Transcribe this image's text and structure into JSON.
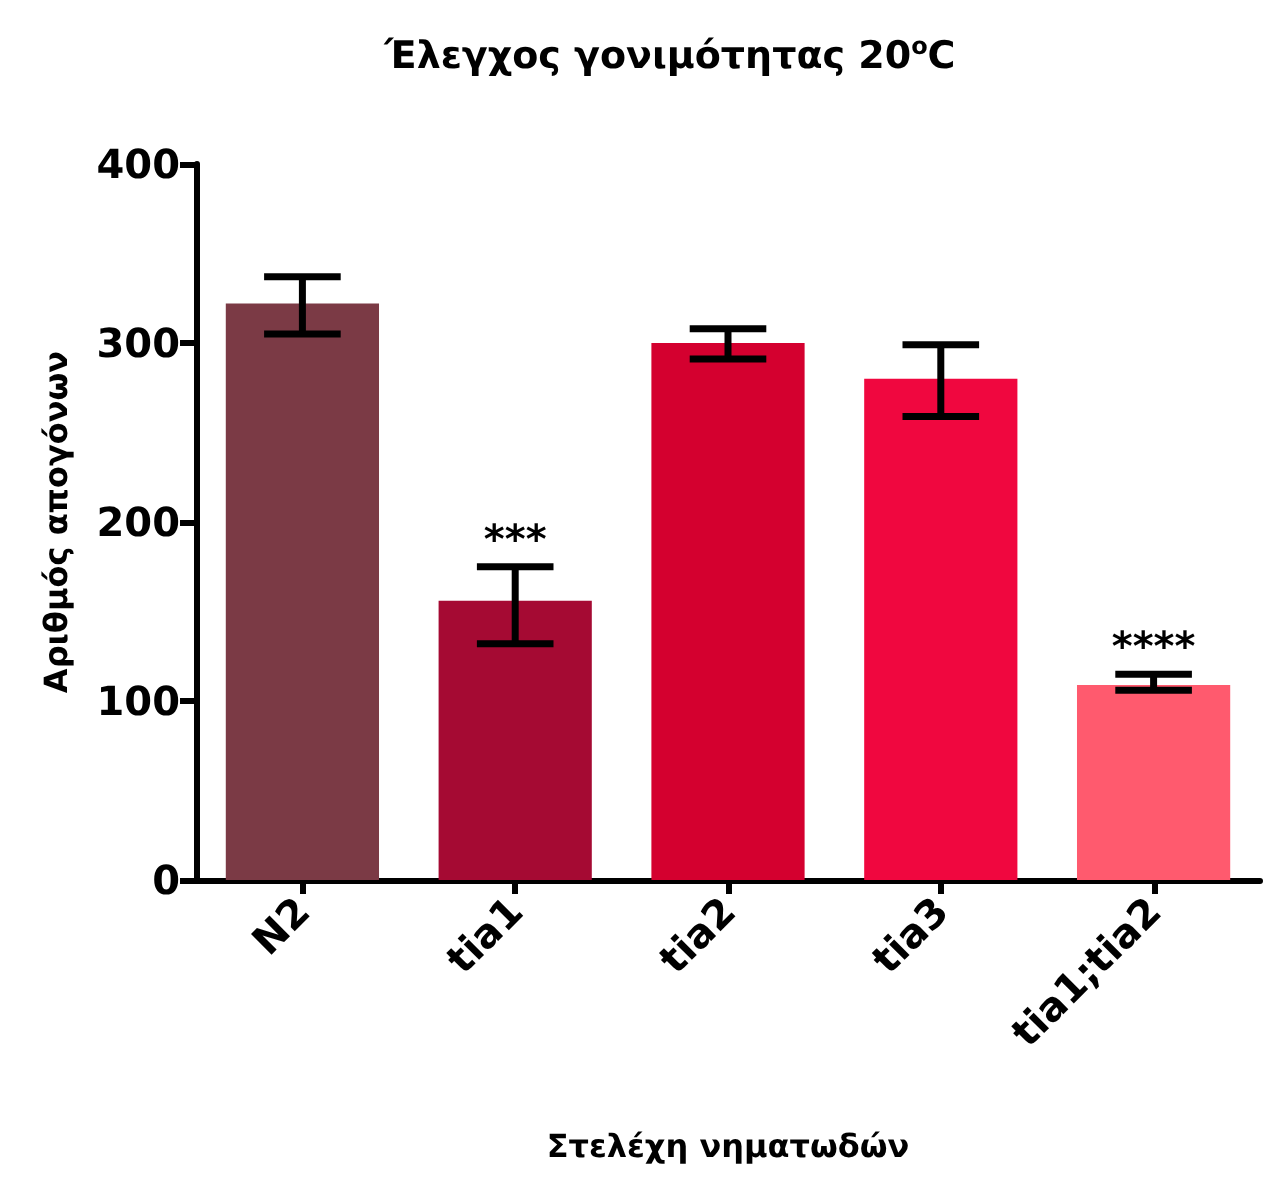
{
  "chart_data": {
    "type": "bar",
    "title": "Έλεγχος γονιμότητας 20$^{o}$C",
    "xlabel": "Στελέχη νηματωδών",
    "ylabel": "Αριθμός απογόνων",
    "categories": [
      "N2",
      "tia1",
      "tia2",
      "tia3",
      "tia1;tia2"
    ],
    "values": [
      322,
      156,
      300,
      280,
      109
    ],
    "colors": [
      "#7b3a45",
      "#a50a33",
      "#d4002f",
      "#f0073f",
      "#ff5a6e"
    ],
    "errors": [
      [
        305,
        337
      ],
      [
        132,
        175
      ],
      [
        291,
        308
      ],
      [
        259,
        299
      ],
      [
        106,
        115
      ]
    ],
    "ylim": [
      0,
      400
    ],
    "yticks": [
      0,
      100,
      200,
      300,
      400
    ],
    "grid": false,
    "annotations": [
      {
        "text": "***",
        "x": "tia1",
        "y": 175
      },
      {
        "text": "****",
        "x": "tia1;tia2",
        "y": 115
      }
    ]
  }
}
